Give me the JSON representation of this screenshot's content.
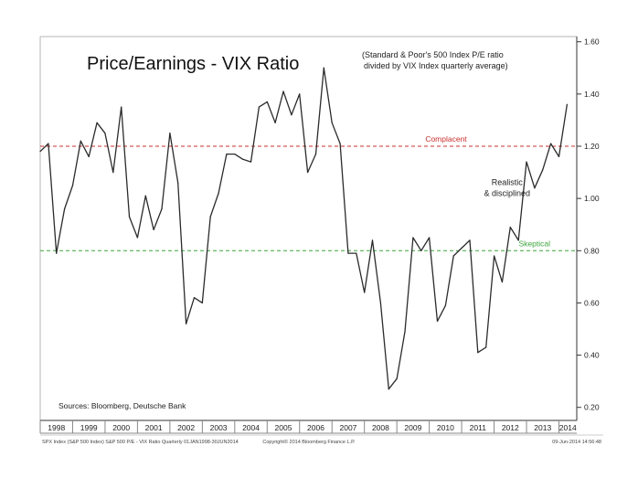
{
  "chart_data": {
    "type": "line",
    "title": "Price/Earnings - VIX Ratio",
    "subtitle_lines": [
      "(Standard & Poor's 500 Index P/E ratio",
      "divided by VIX Index quarterly average)"
    ],
    "source": "Sources: Bloomberg, Deutsche Bank",
    "footer_left": "SPX Index (S&P 500 Index) S&P 500 P/E - VIX Ratio  Quarterly 01JAN1998-30JUN2014",
    "footer_center": "Copyright© 2014 Bloomberg Finance L.P.",
    "footer_right": "09-Jun-2014 14:56:48",
    "x_tick_labels": [
      "1998",
      "1999",
      "2000",
      "2001",
      "2002",
      "2003",
      "2004",
      "2005",
      "2006",
      "2007",
      "2008",
      "2009",
      "2010",
      "2011",
      "2012",
      "2013",
      "2014"
    ],
    "y_tick_labels": [
      "0.20",
      "0.40",
      "0.60",
      "0.80",
      "1.00",
      "1.20",
      "1.40",
      "1.60"
    ],
    "y_ticks": [
      0.2,
      0.4,
      0.6,
      0.8,
      1.0,
      1.2,
      1.4,
      1.6
    ],
    "ylim": [
      0.15,
      1.62
    ],
    "xlim": [
      1998.0,
      2014.55
    ],
    "grid": false,
    "reference_lines": [
      {
        "label": "Complacent",
        "value": 1.2,
        "color": "#c9302c"
      },
      {
        "label": "Skeptical",
        "value": 0.8,
        "color": "#3aa63a"
      }
    ],
    "annotations": [
      {
        "text_lines": [
          "Realistic",
          "& disciplined"
        ],
        "x": 2012.4,
        "y": 1.03
      }
    ],
    "line_color": "#2b2b2b",
    "series": [
      {
        "x": [
          1998.0,
          1998.25,
          1998.5,
          1998.75,
          1999.0,
          1999.25,
          1999.5,
          1999.75,
          2000.0,
          2000.25,
          2000.5,
          2000.75,
          2001.0,
          2001.25,
          2001.5,
          2001.75,
          2002.0,
          2002.25,
          2002.5,
          2002.75,
          2003.0,
          2003.25,
          2003.5,
          2003.75,
          2004.0,
          2004.25,
          2004.5,
          2004.75,
          2005.0,
          2005.25,
          2005.5,
          2005.75,
          2006.0,
          2006.25,
          2006.5,
          2006.75,
          2007.0,
          2007.25,
          2007.5,
          2007.75,
          2008.0,
          2008.25,
          2008.5,
          2008.75,
          2009.0,
          2009.25,
          2009.5,
          2009.75,
          2010.0,
          2010.25,
          2010.5,
          2010.75,
          2011.0,
          2011.25,
          2011.5,
          2011.75,
          2012.0,
          2012.25,
          2012.5,
          2012.75,
          2013.0,
          2013.25,
          2013.5,
          2013.75,
          2014.0,
          2014.25
        ],
        "values": [
          1.18,
          1.21,
          0.79,
          0.96,
          1.05,
          1.22,
          1.16,
          1.29,
          1.25,
          1.1,
          1.35,
          0.93,
          0.85,
          1.01,
          0.88,
          0.96,
          1.25,
          1.06,
          0.52,
          0.62,
          0.6,
          0.93,
          1.02,
          1.17,
          1.17,
          1.15,
          1.14,
          1.35,
          1.37,
          1.29,
          1.41,
          1.32,
          1.4,
          1.1,
          1.17,
          1.5,
          1.29,
          1.21,
          0.79,
          0.79,
          0.64,
          0.84,
          0.6,
          0.27,
          0.31,
          0.49,
          0.85,
          0.8,
          0.85,
          0.53,
          0.59,
          0.78,
          0.81,
          0.84,
          0.41,
          0.43,
          0.78,
          0.68,
          0.89,
          0.84,
          1.14,
          1.04,
          1.11,
          1.21,
          1.16,
          1.36
        ]
      }
    ]
  }
}
